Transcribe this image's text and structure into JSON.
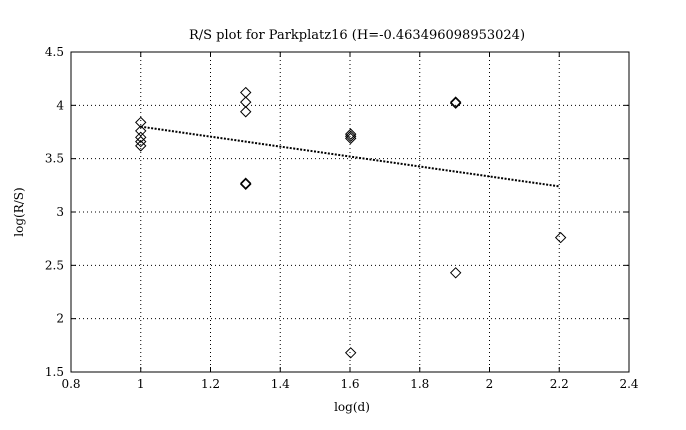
{
  "chart_data": {
    "type": "scatter",
    "title": "R/S plot for Parkplatz16 (H=-0.463496098953024)",
    "xlabel": "log(d)",
    "ylabel": "log(R/S)",
    "xlim": [
      0.8,
      2.4
    ],
    "ylim": [
      1.5,
      4.5
    ],
    "xticks": [
      0.8,
      1,
      1.2,
      1.4,
      1.6,
      1.8,
      2,
      2.2,
      2.4
    ],
    "xtick_labels": [
      "0.8",
      "1",
      "1.2",
      "1.4",
      "1.6",
      "1.8",
      "2",
      "2.2",
      "2.4"
    ],
    "yticks": [
      1.5,
      2,
      2.5,
      3,
      3.5,
      4,
      4.5
    ],
    "ytick_labels": [
      "1.5",
      "2",
      "2.5",
      "3",
      "3.5",
      "4",
      "4.5"
    ],
    "grid": true,
    "marker": "diamond",
    "points": [
      {
        "x": 1.0,
        "y": 3.84
      },
      {
        "x": 1.0,
        "y": 3.76
      },
      {
        "x": 1.0,
        "y": 3.7
      },
      {
        "x": 1.0,
        "y": 3.66
      },
      {
        "x": 1.0,
        "y": 3.62
      },
      {
        "x": 1.301,
        "y": 4.12
      },
      {
        "x": 1.301,
        "y": 4.03
      },
      {
        "x": 1.301,
        "y": 3.94
      },
      {
        "x": 1.301,
        "y": 3.27
      },
      {
        "x": 1.301,
        "y": 3.26
      },
      {
        "x": 1.602,
        "y": 3.73
      },
      {
        "x": 1.602,
        "y": 3.71
      },
      {
        "x": 1.602,
        "y": 3.69
      },
      {
        "x": 1.602,
        "y": 1.68
      },
      {
        "x": 1.903,
        "y": 4.03
      },
      {
        "x": 1.903,
        "y": 4.02
      },
      {
        "x": 1.903,
        "y": 2.43
      },
      {
        "x": 2.204,
        "y": 2.76
      }
    ],
    "fit_line": {
      "x": [
        1.0,
        2.2
      ],
      "y": [
        3.8,
        3.24
      ]
    }
  }
}
